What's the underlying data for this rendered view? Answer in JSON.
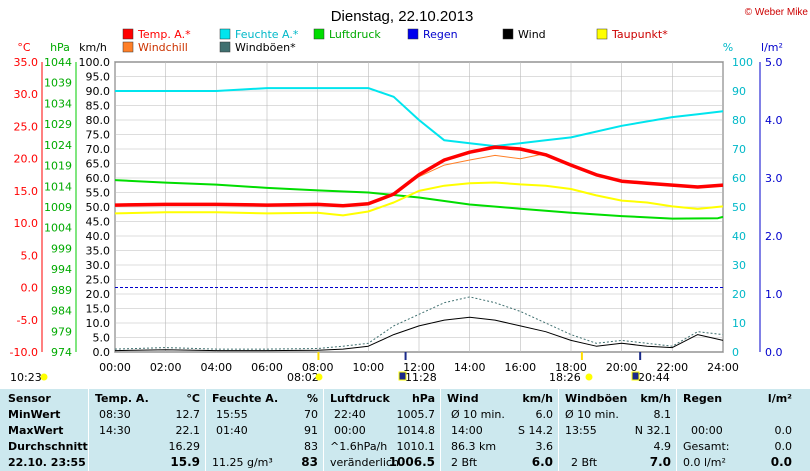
{
  "title": "Dienstag, 22.10.2013",
  "credit": "© Weber Mike",
  "colors": {
    "temp": "#ff0000",
    "humidity": "#00e5ee",
    "pressure": "#00dd00",
    "rain": "#0000ee",
    "wind": "#000000",
    "dewpoint": "#ffff00",
    "windchill": "#ff7f27",
    "gust": "#407070"
  },
  "units": {
    "temp": "°C",
    "pressure": "hPa",
    "wind": "km/h",
    "humidity": "%",
    "rain": "l/m²"
  },
  "chart_data": {
    "type": "line",
    "x_ticks": [
      "00:00",
      "02:00",
      "04:00",
      "06:00",
      "08:00",
      "10:00",
      "12:00",
      "14:00",
      "16:00",
      "18:00",
      "20:00",
      "22:00",
      "24:00"
    ],
    "x_hours_range": [
      0,
      24
    ],
    "axes": {
      "temp_c": {
        "range": [
          -10,
          35
        ],
        "ticks": [
          "35.0",
          "30.0",
          "25.0",
          "20.0",
          "15.0",
          "10.0",
          "5.0",
          "0.0",
          "-5.0",
          "-10.0"
        ]
      },
      "pressure_hpa": {
        "range": [
          974,
          1044
        ],
        "ticks": [
          "1044",
          "1039",
          "1034",
          "1029",
          "1024",
          "1019",
          "1014",
          "1009",
          "1004",
          "999",
          "994",
          "989",
          "984",
          "979",
          "974"
        ]
      },
      "wind_kmh": {
        "range": [
          0,
          100
        ],
        "ticks": [
          "100.0",
          "95.0",
          "90.0",
          "85.0",
          "80.0",
          "75.0",
          "70.0",
          "65.0",
          "60.0",
          "55.0",
          "50.0",
          "45.0",
          "40.0",
          "35.0",
          "30.0",
          "25.0",
          "20.0",
          "15.0",
          "10.0",
          "5.0",
          "0.0"
        ]
      },
      "humidity_pct": {
        "range": [
          0,
          100
        ],
        "ticks": [
          "100",
          "90",
          "80",
          "70",
          "60",
          "50",
          "40",
          "30",
          "20",
          "10",
          "0"
        ]
      },
      "rain_lm2": {
        "range": [
          0,
          5
        ],
        "ticks": [
          "5.0",
          "4.0",
          "3.0",
          "2.0",
          "1.0",
          "0.0"
        ]
      }
    },
    "legend": [
      {
        "name": "Temp. A.*",
        "color": "#ff0000"
      },
      {
        "name": "Feuchte A.*",
        "color": "#00e5ee"
      },
      {
        "name": "Luftdruck",
        "color": "#00dd00"
      },
      {
        "name": "Regen",
        "color": "#0000ee"
      },
      {
        "name": "Wind",
        "color": "#000000"
      },
      {
        "name": "Taupunkt*",
        "color": "#ffff00"
      },
      {
        "name": "Windchill",
        "color": "#ff7f27"
      },
      {
        "name": "Windböen*",
        "color": "#407070"
      }
    ],
    "series": [
      {
        "name": "Temp. A.*",
        "axis": "temp_c",
        "x": [
          0,
          2,
          4,
          6,
          8,
          9,
          10,
          11,
          12,
          13,
          14,
          15,
          16,
          17,
          18,
          19,
          20,
          21,
          22,
          23,
          24
        ],
        "y": [
          12.8,
          12.9,
          12.9,
          12.8,
          12.9,
          12.7,
          13.0,
          14.5,
          17.5,
          19.8,
          21.0,
          21.8,
          21.5,
          20.6,
          19.0,
          17.5,
          16.5,
          16.2,
          15.9,
          15.6,
          15.9
        ]
      },
      {
        "name": "Feuchte A.*",
        "axis": "humidity_pct",
        "x": [
          0,
          2,
          4,
          6,
          8,
          10,
          11,
          12,
          13,
          14,
          15,
          16,
          17,
          18,
          20,
          22,
          23,
          24
        ],
        "y": [
          90,
          90,
          90,
          91,
          91,
          91,
          88,
          80,
          73,
          72,
          71,
          72,
          73,
          74,
          78,
          81,
          82,
          83
        ]
      },
      {
        "name": "Luftdruck",
        "axis": "pressure_hpa",
        "x": [
          0,
          2,
          4,
          6,
          8,
          10,
          12,
          14,
          16,
          18,
          20,
          22,
          23.8,
          24
        ],
        "y": [
          1015.5,
          1014.9,
          1014.4,
          1013.6,
          1013.0,
          1012.5,
          1011.3,
          1009.6,
          1008.6,
          1007.6,
          1006.8,
          1006.2,
          1006.3,
          1006.6
        ]
      },
      {
        "name": "Taupunkt*",
        "axis": "temp_c",
        "x": [
          0,
          2,
          4,
          6,
          8,
          9,
          10,
          11,
          12,
          13,
          14,
          15,
          16,
          17,
          18,
          19,
          20,
          21,
          22,
          23,
          24
        ],
        "y": [
          11.5,
          11.7,
          11.7,
          11.5,
          11.6,
          11.2,
          11.8,
          13.2,
          15.0,
          15.8,
          16.2,
          16.3,
          16.0,
          15.8,
          15.3,
          14.3,
          13.5,
          13.2,
          12.6,
          12.2,
          12.6
        ]
      },
      {
        "name": "Windchill",
        "axis": "temp_c",
        "x": [
          12,
          13,
          14,
          15,
          16,
          17
        ],
        "y": [
          17.2,
          19.0,
          19.8,
          20.5,
          20.0,
          20.8
        ]
      },
      {
        "name": "Wind",
        "axis": "wind_kmh",
        "x": [
          0,
          2,
          4,
          6,
          8,
          9,
          10,
          11,
          12,
          13,
          14,
          15,
          16,
          17,
          18,
          19,
          20,
          21,
          22,
          23,
          24
        ],
        "y": [
          0.5,
          0.8,
          0.5,
          0.5,
          0.6,
          1.0,
          2.0,
          6.0,
          9.0,
          11.0,
          12.0,
          11.0,
          9.0,
          7.0,
          4.0,
          2.0,
          3.0,
          2.0,
          1.5,
          6.0,
          4.0
        ]
      },
      {
        "name": "Windböen*",
        "axis": "wind_kmh",
        "x": [
          0,
          2,
          4,
          6,
          8,
          9,
          10,
          11,
          12,
          13,
          14,
          15,
          16,
          17,
          18,
          19,
          20,
          21,
          22,
          23,
          24
        ],
        "y": [
          1.0,
          1.5,
          1.0,
          1.0,
          1.2,
          2.0,
          3.0,
          9.0,
          13.0,
          17.0,
          19.0,
          17.0,
          14.0,
          10.0,
          6.0,
          3.0,
          4.0,
          3.0,
          2.0,
          7.0,
          6.0
        ]
      }
    ],
    "zero_line": {
      "axis": "temp_c",
      "value": 0
    },
    "sun_events": [
      {
        "label": "10:23",
        "type": "sun"
      },
      {
        "label": "08:02",
        "type": "sun"
      },
      {
        "label": "11:28",
        "type": "moon"
      },
      {
        "label": "18:26",
        "type": "sun"
      },
      {
        "label": "20:44",
        "type": "moon"
      }
    ],
    "grid": true
  },
  "stats": {
    "sensor": {
      "header": "Sensor",
      "rows": [
        "MinWert",
        "MaxWert",
        "Durchschnitt",
        "22.10. 23:55"
      ]
    },
    "temp": {
      "header": "Temp. A.",
      "unit": "°C",
      "rows": [
        [
          "08:30",
          "12.7"
        ],
        [
          "14:30",
          "22.1"
        ],
        [
          "",
          "16.29"
        ],
        [
          "",
          "15.9"
        ]
      ]
    },
    "humidity": {
      "header": "Feuchte A.",
      "unit": "%",
      "rows": [
        [
          "15:55",
          "70"
        ],
        [
          "01:40",
          "91"
        ],
        [
          "",
          "83"
        ],
        [
          "11.25 g/m³",
          "83"
        ]
      ]
    },
    "pressure": {
      "header": "Luftdruck",
      "unit": "hPa",
      "rows": [
        [
          "22:40",
          "1005.7"
        ],
        [
          "00:00",
          "1014.8"
        ],
        [
          "^1.6hPa/h",
          "1010.1"
        ],
        [
          "veränderlich",
          "1006.5"
        ]
      ]
    },
    "wind": {
      "header": "Wind",
      "unit": "km/h",
      "rows": [
        [
          "Ø 10 min.",
          "6.0"
        ],
        [
          "14:00",
          "S 14.2"
        ],
        [
          "86.3 km",
          "3.6"
        ],
        [
          "2 Bft",
          "6.0"
        ]
      ]
    },
    "gust": {
      "header": "Windböen",
      "unit": "km/h",
      "rows": [
        [
          "Ø 10 min.",
          "8.1"
        ],
        [
          "13:55",
          "N 32.1"
        ],
        [
          "",
          "4.9"
        ],
        [
          "2 Bft",
          "7.0"
        ]
      ]
    },
    "rain": {
      "header": "Regen",
      "unit": "l/m²",
      "rows": [
        [
          "",
          ""
        ],
        [
          "00:00",
          "0.0"
        ],
        [
          "Gesamt:",
          "0.0"
        ],
        [
          "0.0 l/m²",
          "0.0"
        ]
      ]
    }
  }
}
